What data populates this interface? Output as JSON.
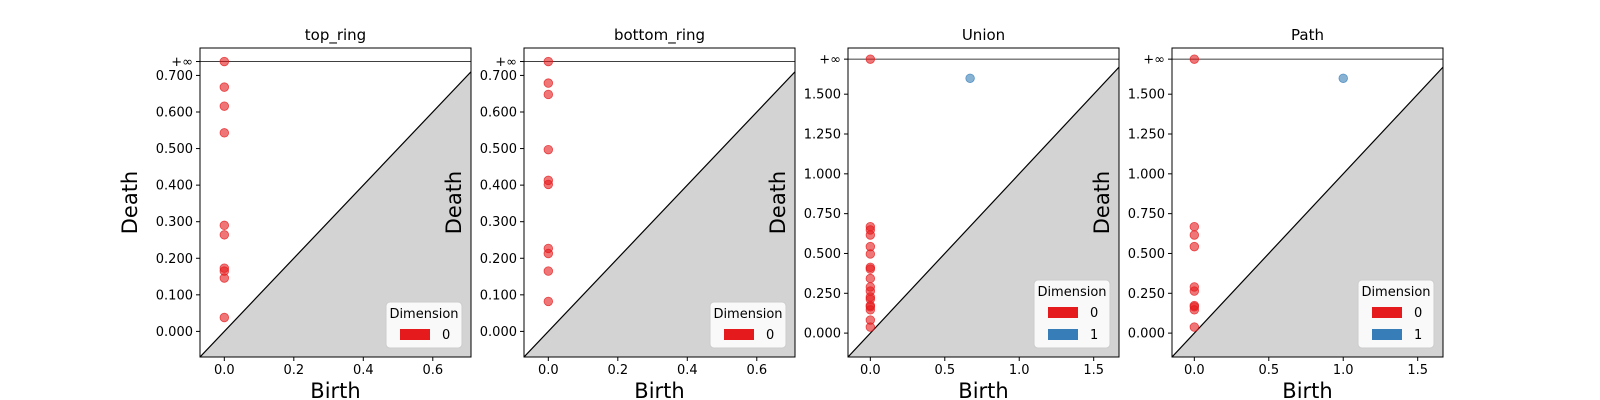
{
  "chart_data": [
    {
      "type": "scatter",
      "title": "top_ring",
      "xlabel": "Birth",
      "ylabel": "Death",
      "xlim": [
        -0.07,
        0.71
      ],
      "ylim": [
        -0.07,
        0.775
      ],
      "x_ticks": [
        0.0,
        0.2,
        0.4,
        0.6
      ],
      "x_tick_labels": [
        "0.0",
        "0.2",
        "0.4",
        "0.6"
      ],
      "y_ticks": [
        0.0,
        0.1,
        0.2,
        0.3,
        0.4,
        0.5,
        0.6,
        0.7
      ],
      "y_tick_labels": [
        "0.000",
        "0.100",
        "0.200",
        "0.300",
        "0.400",
        "0.500",
        "0.600",
        "0.700"
      ],
      "inf_value": 0.738,
      "inf_label": "+∞",
      "legend": {
        "title": "Dimension",
        "position": "lower right",
        "entries": [
          {
            "label": "0",
            "color": "#e41a1c"
          }
        ]
      },
      "series": [
        {
          "name": "0",
          "color": "#e41a1c",
          "points": [
            [
              0,
              "inf"
            ],
            [
              0,
              0.668
            ],
            [
              0,
              0.616
            ],
            [
              0,
              0.543
            ],
            [
              0,
              0.29
            ],
            [
              0,
              0.264
            ],
            [
              0,
              0.173
            ],
            [
              0,
              0.165
            ],
            [
              0,
              0.146
            ],
            [
              0,
              0.038
            ]
          ]
        }
      ]
    },
    {
      "type": "scatter",
      "title": "bottom_ring",
      "xlabel": "Birth",
      "ylabel": "Death",
      "xlim": [
        -0.07,
        0.71
      ],
      "ylim": [
        -0.07,
        0.775
      ],
      "x_ticks": [
        0.0,
        0.2,
        0.4,
        0.6
      ],
      "x_tick_labels": [
        "0.0",
        "0.2",
        "0.4",
        "0.6"
      ],
      "y_ticks": [
        0.0,
        0.1,
        0.2,
        0.3,
        0.4,
        0.5,
        0.6,
        0.7
      ],
      "y_tick_labels": [
        "0.000",
        "0.100",
        "0.200",
        "0.300",
        "0.400",
        "0.500",
        "0.600",
        "0.700"
      ],
      "inf_value": 0.738,
      "inf_label": "+∞",
      "legend": {
        "title": "Dimension",
        "position": "lower right",
        "entries": [
          {
            "label": "0",
            "color": "#e41a1c"
          }
        ]
      },
      "series": [
        {
          "name": "0",
          "color": "#e41a1c",
          "points": [
            [
              0,
              "inf"
            ],
            [
              0,
              0.679
            ],
            [
              0,
              0.648
            ],
            [
              0,
              0.497
            ],
            [
              0,
              0.413
            ],
            [
              0,
              0.402
            ],
            [
              0,
              0.227
            ],
            [
              0,
              0.213
            ],
            [
              0,
              0.165
            ],
            [
              0,
              0.082
            ]
          ]
        }
      ]
    },
    {
      "type": "scatter",
      "title": "Union",
      "xlabel": "Birth",
      "ylabel": "Death",
      "xlim": [
        -0.15,
        1.67
      ],
      "ylim": [
        -0.15,
        1.79
      ],
      "x_ticks": [
        0.0,
        0.5,
        1.0,
        1.5
      ],
      "x_tick_labels": [
        "0.0",
        "0.5",
        "1.0",
        "1.5"
      ],
      "y_ticks": [
        0.0,
        0.25,
        0.5,
        0.75,
        1.0,
        1.25,
        1.5
      ],
      "y_tick_labels": [
        "0.000",
        "0.250",
        "0.500",
        "0.750",
        "1.000",
        "1.250",
        "1.500"
      ],
      "inf_value": 1.72,
      "inf_label": "+∞",
      "legend": {
        "title": "Dimension",
        "position": "lower right",
        "entries": [
          {
            "label": "0",
            "color": "#e41a1c"
          },
          {
            "label": "1",
            "color": "#377eb8"
          }
        ]
      },
      "series": [
        {
          "name": "0",
          "color": "#e41a1c",
          "points": [
            [
              0,
              "inf"
            ],
            [
              0,
              0.668
            ],
            [
              0,
              0.648
            ],
            [
              0,
              0.616
            ],
            [
              0,
              0.543
            ],
            [
              0,
              0.497
            ],
            [
              0,
              0.413
            ],
            [
              0,
              0.402
            ],
            [
              0,
              0.343
            ],
            [
              0,
              0.29
            ],
            [
              0,
              0.264
            ],
            [
              0,
              0.227
            ],
            [
              0,
              0.213
            ],
            [
              0,
              0.173
            ],
            [
              0,
              0.165
            ],
            [
              0,
              0.146
            ],
            [
              0,
              0.082
            ],
            [
              0,
              0.038
            ]
          ]
        },
        {
          "name": "1",
          "color": "#377eb8",
          "points": [
            [
              0.67,
              1.6
            ]
          ]
        }
      ]
    },
    {
      "type": "scatter",
      "title": "Path",
      "xlabel": "Birth",
      "ylabel": "Death",
      "xlim": [
        -0.15,
        1.67
      ],
      "ylim": [
        -0.15,
        1.79
      ],
      "x_ticks": [
        0.0,
        0.5,
        1.0,
        1.5
      ],
      "x_tick_labels": [
        "0.0",
        "0.5",
        "1.0",
        "1.5"
      ],
      "y_ticks": [
        0.0,
        0.25,
        0.5,
        0.75,
        1.0,
        1.25,
        1.5
      ],
      "y_tick_labels": [
        "0.000",
        "0.250",
        "0.500",
        "0.750",
        "1.000",
        "1.250",
        "1.500"
      ],
      "inf_value": 1.72,
      "inf_label": "+∞",
      "legend": {
        "title": "Dimension",
        "position": "lower right",
        "entries": [
          {
            "label": "0",
            "color": "#e41a1c"
          },
          {
            "label": "1",
            "color": "#377eb8"
          }
        ]
      },
      "series": [
        {
          "name": "0",
          "color": "#e41a1c",
          "points": [
            [
              0,
              "inf"
            ],
            [
              0,
              0.668
            ],
            [
              0,
              0.616
            ],
            [
              0,
              0.543
            ],
            [
              0,
              0.29
            ],
            [
              0,
              0.264
            ],
            [
              0,
              0.173
            ],
            [
              0,
              0.165
            ],
            [
              0,
              0.146
            ],
            [
              0,
              0.038
            ]
          ]
        },
        {
          "name": "1",
          "color": "#377eb8",
          "points": [
            [
              1.0,
              1.6
            ]
          ]
        }
      ]
    }
  ]
}
